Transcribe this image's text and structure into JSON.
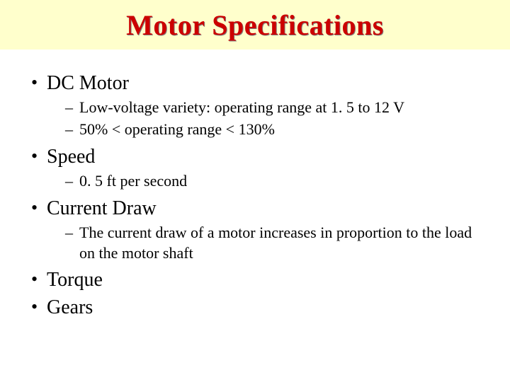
{
  "slide": {
    "title": "Motor Specifications",
    "title_color": "#cc0000",
    "title_band_bg": "#ffffcc",
    "title_shadow": "#808080",
    "background": "#ffffff",
    "text_color": "#000000",
    "font_family": "Times New Roman",
    "title_fontsize": 40,
    "level1_fontsize": 28,
    "level2_fontsize": 22,
    "bullets": [
      {
        "text": "DC Motor",
        "sub": [
          "Low-voltage variety: operating range at 1. 5 to 12 V",
          " 50% < operating range < 130%"
        ]
      },
      {
        "text": "Speed",
        "sub": [
          "0. 5 ft per second"
        ]
      },
      {
        "text": "Current Draw",
        "sub": [
          "The current draw of a motor increases in proportion to the load on the motor shaft"
        ]
      },
      {
        "text": "Torque",
        "sub": []
      },
      {
        "text": "Gears",
        "sub": []
      }
    ]
  }
}
